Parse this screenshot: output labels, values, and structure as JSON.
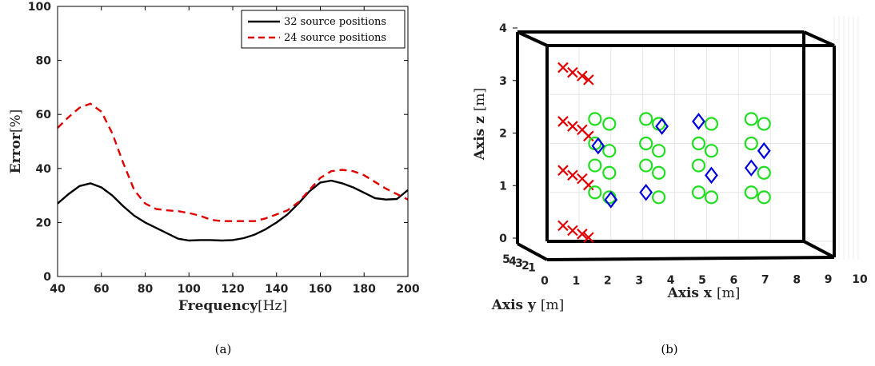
{
  "chart_data": [
    {
      "type": "line",
      "caption": "(a)",
      "xlabel": "Frequency",
      "xlabel_unit": "[Hz]",
      "ylabel": "Error",
      "ylabel_unit": "[%]",
      "xlim": [
        40,
        200
      ],
      "ylim": [
        0,
        100
      ],
      "xticks": [
        40,
        60,
        80,
        100,
        120,
        140,
        160,
        180,
        200
      ],
      "yticks": [
        0,
        20,
        40,
        60,
        80,
        100
      ],
      "grid": false,
      "legend_position": "top-right",
      "series": [
        {
          "name": "32 source positions",
          "color": "#000000",
          "dash": "solid",
          "x": [
            40,
            45,
            50,
            55,
            60,
            65,
            70,
            75,
            80,
            85,
            90,
            95,
            100,
            105,
            110,
            115,
            120,
            125,
            130,
            135,
            140,
            145,
            150,
            155,
            160,
            165,
            170,
            175,
            180,
            185,
            190,
            195,
            200
          ],
          "y": [
            27,
            30.5,
            33.5,
            34.5,
            33,
            30,
            26,
            22.5,
            20,
            18,
            16,
            14,
            13.3,
            13.5,
            13.5,
            13.3,
            13.5,
            14.2,
            15.5,
            17.5,
            20,
            23,
            27,
            31.5,
            34.8,
            35.5,
            34.5,
            33,
            31,
            29,
            28.5,
            28.7,
            32
          ]
        },
        {
          "name": "24 source positions",
          "color": "#e00000",
          "dash": "dashed",
          "x": [
            40,
            45,
            50,
            55,
            60,
            65,
            70,
            75,
            80,
            85,
            90,
            95,
            100,
            105,
            110,
            115,
            120,
            125,
            130,
            135,
            140,
            145,
            150,
            155,
            160,
            165,
            170,
            175,
            180,
            185,
            190,
            195,
            200
          ],
          "y": [
            55,
            59,
            62.5,
            64,
            61,
            53,
            42,
            32,
            27,
            25,
            24.5,
            24.2,
            23.5,
            22.5,
            21,
            20.5,
            20.5,
            20.5,
            20.5,
            21.5,
            23,
            24.5,
            27.5,
            32,
            36.5,
            39,
            39.5,
            39,
            37.5,
            35,
            32.5,
            30.5,
            28.5
          ]
        }
      ]
    },
    {
      "type": "scatter",
      "caption": "(b)",
      "xlabel": "Axis x",
      "xlabel_unit": "[m]",
      "ylabel": "Axis y",
      "ylabel_unit": "[m]",
      "zlabel": "Axis z",
      "zlabel_unit": "[m]",
      "xticks": [
        0,
        1,
        2,
        3,
        4,
        5,
        6,
        7,
        8,
        9,
        10
      ],
      "yticks": [
        1,
        2,
        3,
        4,
        5
      ],
      "zticks": [
        0,
        1,
        2,
        3,
        4
      ],
      "room": {
        "x": [
          0,
          9
        ],
        "z": [
          0,
          4
        ]
      },
      "grid": true,
      "series": [
        {
          "marker": "cross",
          "color": "#e00000",
          "points": [
            {
              "x": 0.5,
              "z": 3.55
            },
            {
              "x": 0.8,
              "z": 3.45
            },
            {
              "x": 1.1,
              "z": 3.38
            },
            {
              "x": 1.3,
              "z": 3.3
            },
            {
              "x": 0.5,
              "z": 2.45
            },
            {
              "x": 0.8,
              "z": 2.35
            },
            {
              "x": 1.1,
              "z": 2.28
            },
            {
              "x": 1.3,
              "z": 2.15
            },
            {
              "x": 0.5,
              "z": 1.45
            },
            {
              "x": 0.8,
              "z": 1.35
            },
            {
              "x": 1.1,
              "z": 1.28
            },
            {
              "x": 1.3,
              "z": 1.15
            },
            {
              "x": 0.5,
              "z": 0.32
            },
            {
              "x": 0.8,
              "z": 0.22
            },
            {
              "x": 1.1,
              "z": 0.15
            },
            {
              "x": 1.3,
              "z": 0.08
            }
          ]
        },
        {
          "marker": "circle",
          "color": "#22dd22",
          "points": [
            {
              "x": 1.5,
              "z": 2.5
            },
            {
              "x": 1.95,
              "z": 2.4
            },
            {
              "x": 1.5,
              "z": 2.0
            },
            {
              "x": 1.95,
              "z": 1.85
            },
            {
              "x": 1.5,
              "z": 1.55
            },
            {
              "x": 1.95,
              "z": 1.4
            },
            {
              "x": 1.5,
              "z": 1.0
            },
            {
              "x": 1.95,
              "z": 0.9
            },
            {
              "x": 3.1,
              "z": 2.5
            },
            {
              "x": 3.5,
              "z": 2.4
            },
            {
              "x": 3.1,
              "z": 2.0
            },
            {
              "x": 3.5,
              "z": 1.85
            },
            {
              "x": 3.1,
              "z": 1.55
            },
            {
              "x": 3.5,
              "z": 1.4
            },
            {
              "x": 3.5,
              "z": 0.9
            },
            {
              "x": 4.75,
              "z": 2.0
            },
            {
              "x": 5.15,
              "z": 1.85
            },
            {
              "x": 4.75,
              "z": 1.55
            },
            {
              "x": 5.15,
              "z": 2.4
            },
            {
              "x": 4.75,
              "z": 1.0
            },
            {
              "x": 5.15,
              "z": 0.9
            },
            {
              "x": 6.4,
              "z": 2.5
            },
            {
              "x": 6.8,
              "z": 2.4
            },
            {
              "x": 6.4,
              "z": 2.0
            },
            {
              "x": 6.8,
              "z": 1.4
            },
            {
              "x": 6.4,
              "z": 1.0
            },
            {
              "x": 6.8,
              "z": 0.9
            }
          ]
        },
        {
          "marker": "diamond",
          "color": "#0000dd",
          "points": [
            {
              "x": 1.6,
              "z": 1.95
            },
            {
              "x": 2.0,
              "z": 0.85
            },
            {
              "x": 3.6,
              "z": 2.35
            },
            {
              "x": 3.1,
              "z": 1.0
            },
            {
              "x": 4.75,
              "z": 2.45
            },
            {
              "x": 5.15,
              "z": 1.35
            },
            {
              "x": 6.4,
              "z": 1.5
            },
            {
              "x": 6.8,
              "z": 1.85
            }
          ]
        }
      ]
    }
  ]
}
